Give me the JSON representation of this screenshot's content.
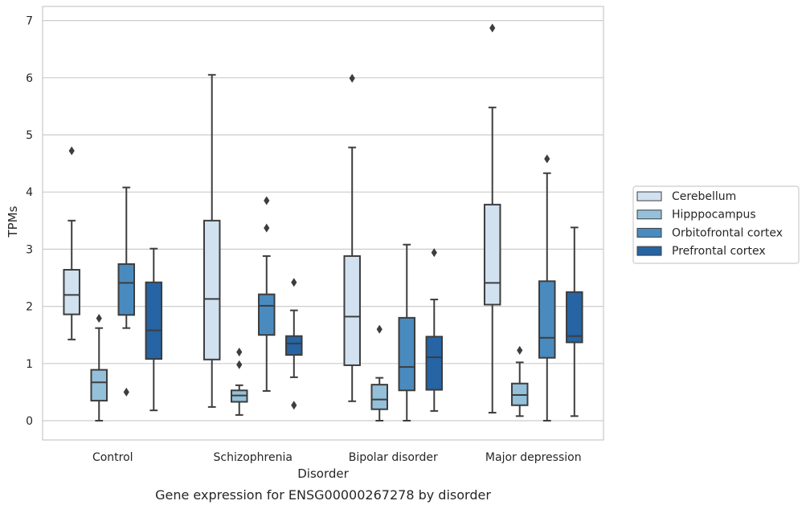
{
  "chart_data": {
    "type": "boxplot",
    "title": "",
    "caption": "Gene expression for ENSG00000267278 by disorder",
    "xlabel": "Disorder",
    "ylabel": "TPMs",
    "ylim": [
      -0.33,
      7.2
    ],
    "yticks": [
      "0",
      "1",
      "2",
      "3",
      "4",
      "5",
      "6",
      "7"
    ],
    "grid": "horizontal",
    "legend_position": "right",
    "categories": [
      "Control",
      "Schizophrenia",
      "Bipolar disorder",
      "Major depression"
    ],
    "series": [
      {
        "name": "Cerebellum",
        "color": "#d1e1f0",
        "boxes": [
          {
            "whislo": 1.42,
            "q1": 1.86,
            "med": 2.2,
            "q3": 2.64,
            "whishi": 3.5,
            "fliers": [
              4.72
            ]
          },
          {
            "whislo": 0.24,
            "q1": 1.07,
            "med": 2.13,
            "q3": 3.5,
            "whishi": 6.05,
            "fliers": []
          },
          {
            "whislo": 0.34,
            "q1": 0.97,
            "med": 1.82,
            "q3": 2.88,
            "whishi": 4.78,
            "fliers": [
              5.99
            ]
          },
          {
            "whislo": 0.14,
            "q1": 2.03,
            "med": 2.41,
            "q3": 3.78,
            "whishi": 5.48,
            "fliers": [
              6.87
            ]
          }
        ]
      },
      {
        "name": "Hipppocampus",
        "color": "#94c0da",
        "boxes": [
          {
            "whislo": 0.0,
            "q1": 0.35,
            "med": 0.67,
            "q3": 0.89,
            "whishi": 1.62,
            "fliers": [
              1.79
            ]
          },
          {
            "whislo": 0.1,
            "q1": 0.33,
            "med": 0.44,
            "q3": 0.53,
            "whishi": 0.62,
            "fliers": [
              1.2,
              0.98
            ]
          },
          {
            "whislo": 0.0,
            "q1": 0.2,
            "med": 0.37,
            "q3": 0.63,
            "whishi": 0.75,
            "fliers": [
              1.6
            ]
          },
          {
            "whislo": 0.08,
            "q1": 0.27,
            "med": 0.45,
            "q3": 0.65,
            "whishi": 1.02,
            "fliers": [
              1.23
            ]
          }
        ]
      },
      {
        "name": "Orbitofrontal cortex",
        "color": "#4a8bbf",
        "boxes": [
          {
            "whislo": 1.62,
            "q1": 1.85,
            "med": 2.41,
            "q3": 2.74,
            "whishi": 4.08,
            "fliers": [
              0.5
            ]
          },
          {
            "whislo": 0.52,
            "q1": 1.5,
            "med": 2.01,
            "q3": 2.21,
            "whishi": 2.88,
            "fliers": [
              3.85,
              3.37
            ]
          },
          {
            "whislo": 0.0,
            "q1": 0.53,
            "med": 0.94,
            "q3": 1.8,
            "whishi": 3.08,
            "fliers": []
          },
          {
            "whislo": 0.0,
            "q1": 1.1,
            "med": 1.45,
            "q3": 2.44,
            "whishi": 4.33,
            "fliers": [
              4.58
            ]
          }
        ]
      },
      {
        "name": "Prefrontal cortex",
        "color": "#2664a4",
        "boxes": [
          {
            "whislo": 0.18,
            "q1": 1.08,
            "med": 1.58,
            "q3": 2.42,
            "whishi": 3.01,
            "fliers": []
          },
          {
            "whislo": 0.76,
            "q1": 1.15,
            "med": 1.35,
            "q3": 1.48,
            "whishi": 1.93,
            "fliers": [
              2.42,
              0.27
            ]
          },
          {
            "whislo": 0.17,
            "q1": 0.54,
            "med": 1.11,
            "q3": 1.47,
            "whishi": 2.12,
            "fliers": [
              2.94
            ]
          },
          {
            "whislo": 0.08,
            "q1": 1.37,
            "med": 1.48,
            "q3": 2.25,
            "whishi": 3.38,
            "fliers": []
          }
        ]
      }
    ]
  }
}
